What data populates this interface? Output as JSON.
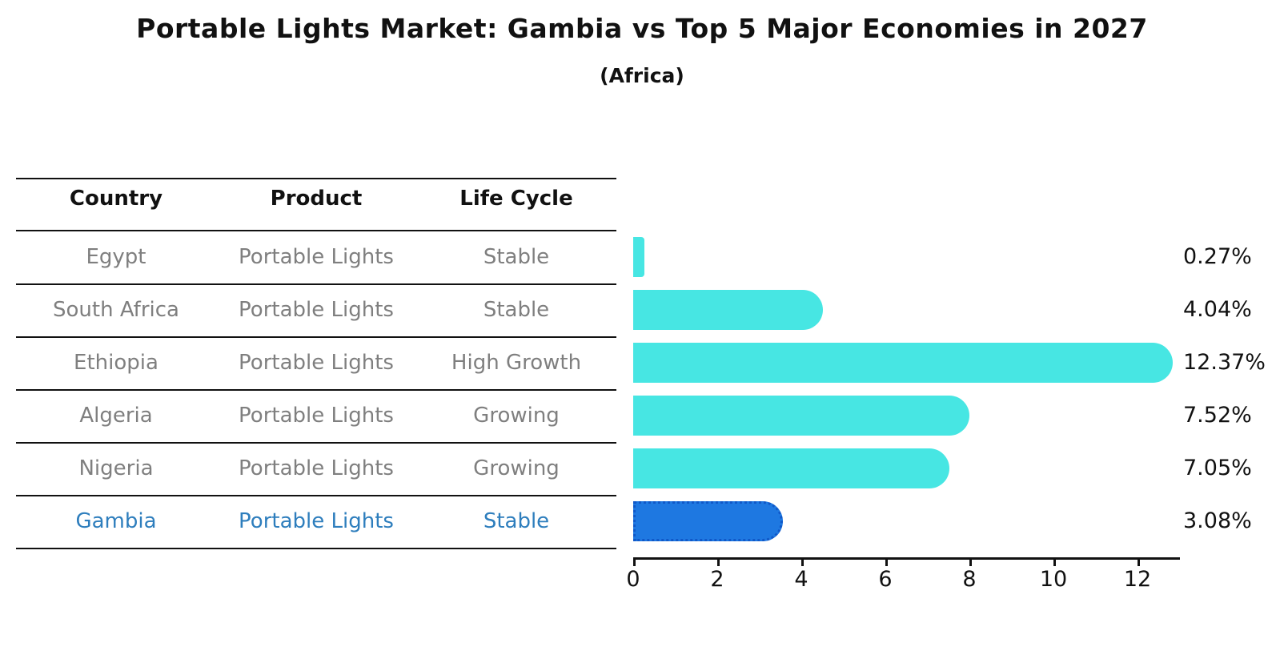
{
  "header": {
    "title": "Portable Lights Market: Gambia vs Top 5 Major Economies in 2027",
    "subtitle": "(Africa)"
  },
  "table": {
    "headers": [
      "Country",
      "Product",
      "Life Cycle"
    ],
    "rows": [
      {
        "country": "Egypt",
        "product": "Portable Lights",
        "life_cycle": "Stable",
        "highlight": false
      },
      {
        "country": "South Africa",
        "product": "Portable Lights",
        "life_cycle": "Stable",
        "highlight": false
      },
      {
        "country": "Ethiopia",
        "product": "Portable Lights",
        "life_cycle": "High Growth",
        "highlight": false
      },
      {
        "country": "Algeria",
        "product": "Portable Lights",
        "life_cycle": "Growing",
        "highlight": false
      },
      {
        "country": "Nigeria",
        "product": "Portable Lights",
        "life_cycle": "Growing",
        "highlight": true
      }
    ],
    "highlight_row": {
      "country": "Gambia",
      "product": "Portable Lights",
      "life_cycle": "Stable",
      "highlight": true
    }
  },
  "chart_data": {
    "type": "bar",
    "orientation": "horizontal",
    "title": "Portable Lights Market: Gambia vs Top 5 Major Economies in 2027",
    "subtitle": "(Africa)",
    "categories": [
      "Egypt",
      "South Africa",
      "Ethiopia",
      "Algeria",
      "Nigeria",
      "Gambia"
    ],
    "values": [
      0.27,
      4.04,
      12.37,
      7.52,
      7.05,
      3.08
    ],
    "value_labels": [
      "0.27%",
      "4.04%",
      "12.37%",
      "7.52%",
      "7.05%",
      "3.08%"
    ],
    "xlabel": "",
    "ylabel": "",
    "xlim": [
      0,
      13
    ],
    "xticks": [
      0,
      2,
      4,
      6,
      8,
      10,
      12
    ],
    "grid": false,
    "legend": false,
    "bar_color": "#47e6e3",
    "highlight_category": "Gambia",
    "highlight_bar_color": "#1e78e1",
    "highlight_bar_border_color": "#1058c8",
    "text_gray": "#7f7f7f",
    "highlight_text_color": "#2e7ebd"
  }
}
